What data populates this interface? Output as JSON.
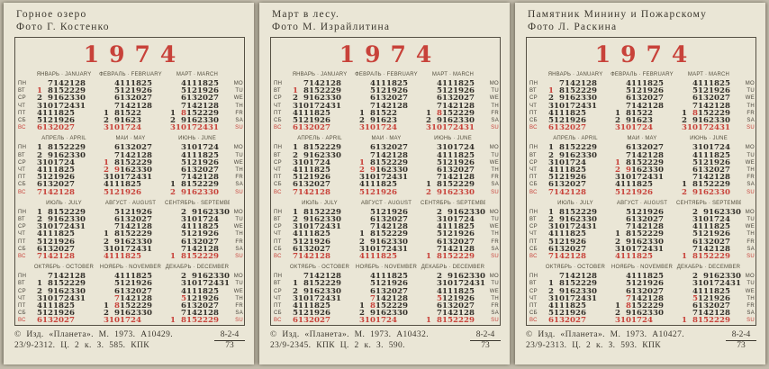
{
  "colors": {
    "red": "#c8423a",
    "card_bg": "#eae6d6",
    "page_bg": "#c1bbab",
    "ink": "#3b372e"
  },
  "year": "1974",
  "weekdays_ru": [
    "ПН",
    "ВТ",
    "СР",
    "ЧТ",
    "ПТ",
    "СБ",
    "ВС"
  ],
  "weekdays_en": [
    "MO",
    "TU",
    "WE",
    "TH",
    "FR",
    "SA",
    "SU"
  ],
  "months": [
    {
      "label": "ЯНВАРЬ · JANUARY",
      "rows": [
        [
          "",
          "7",
          "14",
          "21",
          "28",
          ""
        ],
        [
          "*1",
          "8",
          "15",
          "22",
          "29",
          ""
        ],
        [
          "2",
          "9",
          "16",
          "23",
          "30",
          ""
        ],
        [
          "3",
          "10",
          "17",
          "24",
          "31",
          ""
        ],
        [
          "4",
          "11",
          "18",
          "25",
          "",
          ""
        ],
        [
          "5",
          "12",
          "19",
          "26",
          "",
          ""
        ],
        [
          "*6",
          "*13",
          "*20",
          "*27",
          "",
          ""
        ]
      ]
    },
    {
      "label": "ФЕВРАЛЬ · FEBRUARY",
      "rows": [
        [
          "",
          "4",
          "11",
          "18",
          "25",
          ""
        ],
        [
          "",
          "5",
          "12",
          "19",
          "26",
          ""
        ],
        [
          "",
          "6",
          "13",
          "20",
          "27",
          ""
        ],
        [
          "",
          "7",
          "14",
          "21",
          "28",
          ""
        ],
        [
          "1",
          "8",
          "15",
          "22",
          "",
          ""
        ],
        [
          "2",
          "9",
          "16",
          "23",
          "",
          ""
        ],
        [
          "*3",
          "*10",
          "*17",
          "*24",
          "",
          ""
        ]
      ]
    },
    {
      "label": "МАРТ · MARCH",
      "rows": [
        [
          "",
          "4",
          "11",
          "18",
          "25",
          ""
        ],
        [
          "",
          "5",
          "12",
          "19",
          "26",
          ""
        ],
        [
          "",
          "6",
          "13",
          "20",
          "27",
          ""
        ],
        [
          "",
          "7",
          "14",
          "21",
          "28",
          ""
        ],
        [
          "1",
          "*8",
          "15",
          "22",
          "29",
          ""
        ],
        [
          "2",
          "9",
          "16",
          "23",
          "30",
          ""
        ],
        [
          "*3",
          "*10",
          "*17",
          "*24",
          "*31",
          ""
        ]
      ]
    },
    {
      "label": "АПРЕЛЬ · APRIL",
      "rows": [
        [
          "1",
          "8",
          "15",
          "22",
          "29",
          ""
        ],
        [
          "2",
          "9",
          "16",
          "23",
          "30",
          ""
        ],
        [
          "3",
          "10",
          "17",
          "24",
          "",
          ""
        ],
        [
          "4",
          "11",
          "18",
          "25",
          "",
          ""
        ],
        [
          "5",
          "12",
          "19",
          "26",
          "",
          ""
        ],
        [
          "6",
          "13",
          "20",
          "27",
          "",
          ""
        ],
        [
          "*7",
          "*14",
          "*21",
          "*28",
          "",
          ""
        ]
      ]
    },
    {
      "label": "МАЙ · MAY",
      "rows": [
        [
          "",
          "6",
          "13",
          "20",
          "27",
          ""
        ],
        [
          "",
          "7",
          "14",
          "21",
          "28",
          ""
        ],
        [
          "*1",
          "8",
          "15",
          "22",
          "29",
          ""
        ],
        [
          "*2",
          "*9",
          "16",
          "23",
          "30",
          ""
        ],
        [
          "3",
          "10",
          "17",
          "24",
          "31",
          ""
        ],
        [
          "4",
          "11",
          "18",
          "25",
          "",
          ""
        ],
        [
          "*5",
          "*12",
          "*19",
          "*26",
          "",
          ""
        ]
      ]
    },
    {
      "label": "ИЮНЬ · JUNE",
      "rows": [
        [
          "",
          "3",
          "10",
          "17",
          "24",
          ""
        ],
        [
          "",
          "4",
          "11",
          "18",
          "25",
          ""
        ],
        [
          "",
          "5",
          "12",
          "19",
          "26",
          ""
        ],
        [
          "",
          "6",
          "13",
          "20",
          "27",
          ""
        ],
        [
          "",
          "7",
          "14",
          "21",
          "28",
          ""
        ],
        [
          "1",
          "8",
          "15",
          "22",
          "29",
          ""
        ],
        [
          "*2",
          "*9",
          "*16",
          "*23",
          "*30",
          ""
        ]
      ]
    },
    {
      "label": "ИЮЛЬ · JULY",
      "rows": [
        [
          "1",
          "8",
          "15",
          "22",
          "29",
          ""
        ],
        [
          "2",
          "9",
          "16",
          "23",
          "30",
          ""
        ],
        [
          "3",
          "10",
          "17",
          "24",
          "31",
          ""
        ],
        [
          "4",
          "11",
          "18",
          "25",
          "",
          ""
        ],
        [
          "5",
          "12",
          "19",
          "26",
          "",
          ""
        ],
        [
          "6",
          "13",
          "20",
          "27",
          "",
          ""
        ],
        [
          "*7",
          "*14",
          "*21",
          "*28",
          "",
          ""
        ]
      ]
    },
    {
      "label": "АВГУСТ · AUGUST",
      "rows": [
        [
          "",
          "5",
          "12",
          "19",
          "26",
          ""
        ],
        [
          "",
          "6",
          "13",
          "20",
          "27",
          ""
        ],
        [
          "",
          "7",
          "14",
          "21",
          "28",
          ""
        ],
        [
          "1",
          "8",
          "15",
          "22",
          "29",
          ""
        ],
        [
          "2",
          "9",
          "16",
          "23",
          "30",
          ""
        ],
        [
          "3",
          "10",
          "17",
          "24",
          "31",
          ""
        ],
        [
          "*4",
          "*11",
          "*18",
          "*25",
          "",
          ""
        ]
      ]
    },
    {
      "label": "СЕНТЯБРЬ · SEPTEMBER",
      "rows": [
        [
          "",
          "2",
          "9",
          "16",
          "23",
          "30"
        ],
        [
          "",
          "3",
          "10",
          "17",
          "24",
          ""
        ],
        [
          "",
          "4",
          "11",
          "18",
          "25",
          ""
        ],
        [
          "",
          "5",
          "12",
          "19",
          "26",
          ""
        ],
        [
          "",
          "6",
          "13",
          "20",
          "27",
          ""
        ],
        [
          "",
          "7",
          "14",
          "21",
          "28",
          ""
        ],
        [
          "*1",
          "*8",
          "*15",
          "*22",
          "*29",
          ""
        ]
      ]
    },
    {
      "label": "ОКТЯБРЬ · OCTOBER",
      "rows": [
        [
          "",
          "7",
          "14",
          "21",
          "28",
          ""
        ],
        [
          "1",
          "8",
          "15",
          "22",
          "29",
          ""
        ],
        [
          "2",
          "9",
          "16",
          "23",
          "30",
          ""
        ],
        [
          "3",
          "10",
          "17",
          "24",
          "31",
          ""
        ],
        [
          "4",
          "11",
          "18",
          "25",
          "",
          ""
        ],
        [
          "5",
          "12",
          "19",
          "26",
          "",
          ""
        ],
        [
          "*6",
          "*13",
          "*20",
          "*27",
          "",
          ""
        ]
      ]
    },
    {
      "label": "НОЯБРЬ · NOVEMBER",
      "rows": [
        [
          "",
          "4",
          "11",
          "18",
          "25",
          ""
        ],
        [
          "",
          "5",
          "12",
          "19",
          "26",
          ""
        ],
        [
          "",
          "6",
          "13",
          "20",
          "27",
          ""
        ],
        [
          "",
          "*7",
          "14",
          "21",
          "28",
          ""
        ],
        [
          "1",
          "*8",
          "15",
          "22",
          "29",
          ""
        ],
        [
          "2",
          "9",
          "16",
          "23",
          "30",
          ""
        ],
        [
          "*3",
          "*10",
          "*17",
          "*24",
          "",
          ""
        ]
      ]
    },
    {
      "label": "ДЕКАБРЬ · DECEMBER",
      "rows": [
        [
          "",
          "2",
          "9",
          "16",
          "23",
          "30"
        ],
        [
          "",
          "3",
          "10",
          "17",
          "24",
          "31"
        ],
        [
          "",
          "4",
          "11",
          "18",
          "25",
          ""
        ],
        [
          "",
          "*5",
          "12",
          "19",
          "26",
          ""
        ],
        [
          "",
          "6",
          "13",
          "20",
          "27",
          ""
        ],
        [
          "",
          "7",
          "14",
          "21",
          "28",
          ""
        ],
        [
          "*1",
          "*8",
          "*15",
          "*22",
          "*29",
          ""
        ]
      ]
    }
  ],
  "cards": [
    {
      "title_line1": "Горное озеро",
      "title_line2": "Фото Г. Костенко",
      "imprint_line1": "© Изд. «Планета». М. 1973. А10429.",
      "imprint_line2": "23/9-2312. Ц. 2 к. З. 585. КПК",
      "edition_top": "8-2-4",
      "edition_bottom": "73"
    },
    {
      "title_line1": "Март в лесу.",
      "title_line2": "Фото М. Израйлитина",
      "imprint_line1": "© Изд. «Планета». М. 1973. А10432.",
      "imprint_line2": "23/9-2345. КПК Ц. 2 к. З. 590.",
      "edition_top": "8-2-4",
      "edition_bottom": "73"
    },
    {
      "title_line1": "Памятник Минину и Пожарскому",
      "title_line2": "Фото Л. Раскина",
      "imprint_line1": "© Изд. «Планета». М. 1973. А10427.",
      "imprint_line2": "23/9-2313. Ц. 2 к. З. 593. КПК",
      "edition_top": "8-2-4",
      "edition_bottom": "73"
    }
  ]
}
